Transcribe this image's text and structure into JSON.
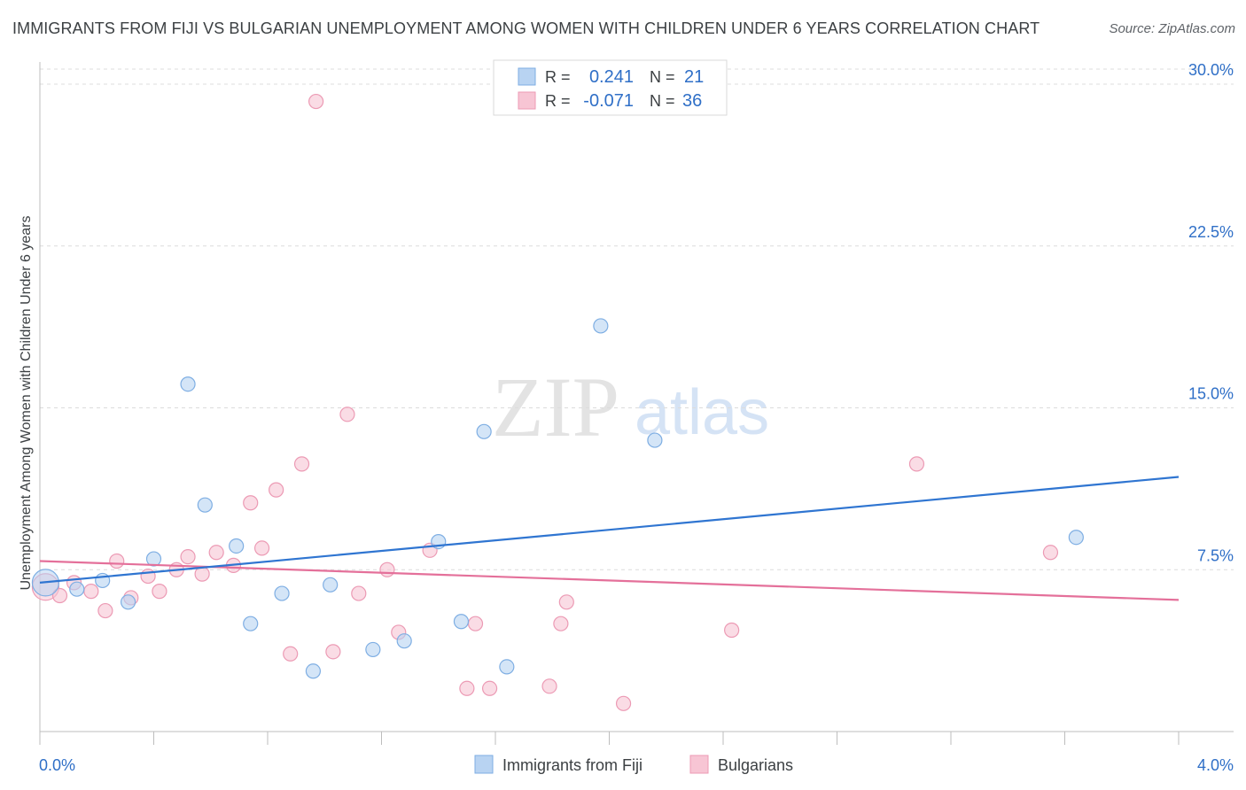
{
  "title": "IMMIGRANTS FROM FIJI VS BULGARIAN UNEMPLOYMENT AMONG WOMEN WITH CHILDREN UNDER 6 YEARS CORRELATION CHART",
  "source": "Source: ZipAtlas.com",
  "watermark": {
    "zip": "ZIP",
    "atlas": "atlas"
  },
  "colors": {
    "fiji_fill": "#b8d3f2",
    "fiji_stroke": "#7eaee3",
    "fiji_line": "#2f75d1",
    "bulg_fill": "#f7c5d4",
    "bulg_stroke": "#ec9ab4",
    "bulg_line": "#e4709a",
    "value_text": "#2f6fc7",
    "grid": "#dcdcdc"
  },
  "stats": [
    {
      "r_label": "R =",
      "r": "0.241",
      "n_label": "N =",
      "n": "21",
      "series": "fiji"
    },
    {
      "r_label": "R =",
      "r": "-0.071",
      "n_label": "N =",
      "n": "36",
      "series": "bulgarians"
    }
  ],
  "chart_data": {
    "type": "scatter",
    "title": "IMMIGRANTS FROM FIJI VS BULGARIAN UNEMPLOYMENT AMONG WOMEN WITH CHILDREN UNDER 6 YEARS CORRELATION CHART",
    "xlabel": "",
    "ylabel": "Unemployment Among Women with Children Under 6 years",
    "xlim": [
      0,
      4.0
    ],
    "ylim": [
      0,
      30.7
    ],
    "x_tick_labels": [
      "0.0%",
      "4.0%"
    ],
    "y_ticks": [
      7.5,
      15.0,
      22.5,
      30.0
    ],
    "y_tick_labels": [
      "7.5%",
      "15.0%",
      "22.5%",
      "30.0%"
    ],
    "grid": true,
    "legend_position": "bottom",
    "series": [
      {
        "name": "Immigrants from Fiji",
        "points": [
          [
            0.02,
            6.9
          ],
          [
            0.13,
            6.6
          ],
          [
            0.22,
            7.0
          ],
          [
            0.31,
            6.0
          ],
          [
            0.4,
            8.0
          ],
          [
            0.52,
            16.1
          ],
          [
            0.58,
            10.5
          ],
          [
            0.69,
            8.6
          ],
          [
            0.74,
            5.0
          ],
          [
            0.85,
            6.4
          ],
          [
            0.96,
            2.8
          ],
          [
            1.02,
            6.8
          ],
          [
            1.17,
            3.8
          ],
          [
            1.28,
            4.2
          ],
          [
            1.4,
            8.8
          ],
          [
            1.48,
            5.1
          ],
          [
            1.56,
            13.9
          ],
          [
            1.64,
            3.0
          ],
          [
            1.97,
            18.8
          ],
          [
            2.16,
            13.5
          ],
          [
            3.64,
            9.0
          ]
        ],
        "trend": {
          "x": [
            0.0,
            4.0
          ],
          "y": [
            6.9,
            11.8
          ]
        }
      },
      {
        "name": "Bulgarians",
        "points": [
          [
            0.02,
            6.7
          ],
          [
            0.07,
            6.3
          ],
          [
            0.12,
            6.9
          ],
          [
            0.18,
            6.5
          ],
          [
            0.23,
            5.6
          ],
          [
            0.27,
            7.9
          ],
          [
            0.32,
            6.2
          ],
          [
            0.38,
            7.2
          ],
          [
            0.42,
            6.5
          ],
          [
            0.48,
            7.5
          ],
          [
            0.52,
            8.1
          ],
          [
            0.57,
            7.3
          ],
          [
            0.62,
            8.3
          ],
          [
            0.68,
            7.7
          ],
          [
            0.74,
            10.6
          ],
          [
            0.78,
            8.5
          ],
          [
            0.83,
            11.2
          ],
          [
            0.88,
            3.6
          ],
          [
            0.92,
            12.4
          ],
          [
            0.97,
            29.2
          ],
          [
            1.03,
            3.7
          ],
          [
            1.08,
            14.7
          ],
          [
            1.12,
            6.4
          ],
          [
            1.22,
            7.5
          ],
          [
            1.26,
            4.6
          ],
          [
            1.37,
            8.4
          ],
          [
            1.5,
            2.0
          ],
          [
            1.53,
            5.0
          ],
          [
            1.58,
            2.0
          ],
          [
            1.79,
            2.1
          ],
          [
            1.83,
            5.0
          ],
          [
            1.85,
            6.0
          ],
          [
            2.05,
            1.3
          ],
          [
            2.43,
            4.7
          ],
          [
            3.08,
            12.4
          ],
          [
            3.55,
            8.3
          ]
        ],
        "trend": {
          "x": [
            0.0,
            4.0
          ],
          "y": [
            7.9,
            6.1
          ]
        }
      }
    ]
  }
}
